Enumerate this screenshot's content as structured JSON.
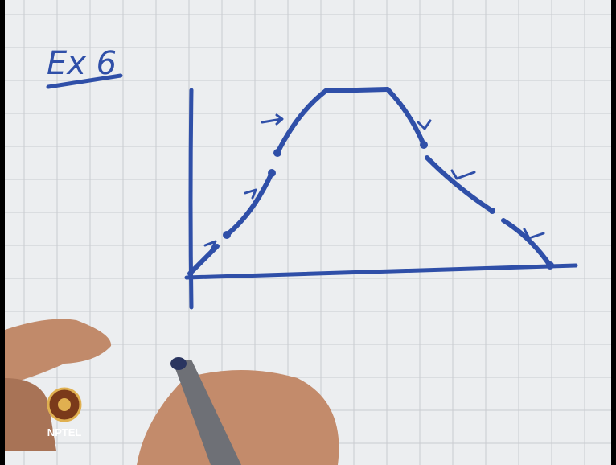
{
  "heading": "Ex 6",
  "logo": {
    "label": "NPTEL"
  }
}
